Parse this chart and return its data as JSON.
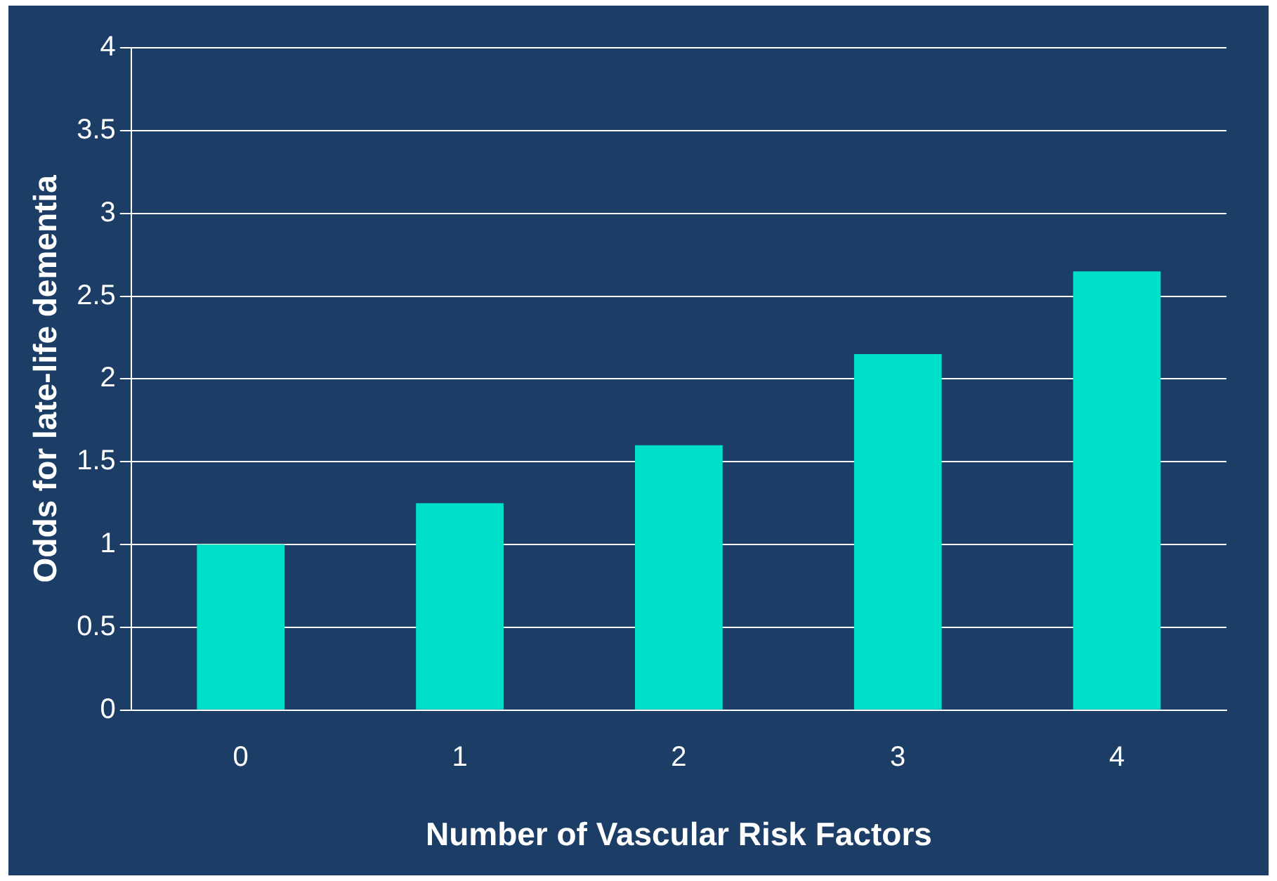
{
  "chart_data": {
    "type": "bar",
    "xlabel": "Number of Vascular Risk Factors",
    "ylabel": "Odds for late-life dementia",
    "categories": [
      "0",
      "1",
      "2",
      "3",
      "4"
    ],
    "values": [
      1,
      1.25,
      1.6,
      2.15,
      2.65
    ],
    "color": "#00dfc8",
    "ylim": [
      0,
      4
    ],
    "yticks": [
      0,
      0.5,
      1,
      1.5,
      2,
      2.5,
      3,
      3.5,
      4
    ],
    "grid": "y"
  }
}
